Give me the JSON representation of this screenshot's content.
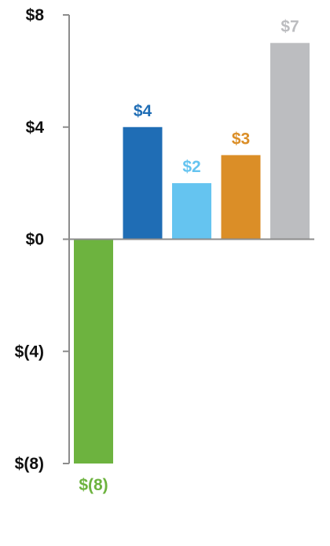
{
  "chart_data": {
    "type": "bar",
    "title": "",
    "xlabel": "",
    "ylabel": "",
    "ylim": [
      -8,
      8
    ],
    "y_ticks": [
      8,
      4,
      0,
      -4,
      -8
    ],
    "y_tick_labels": [
      "$8",
      "$4",
      "$0",
      "$(4)",
      "$(8)"
    ],
    "grid": false,
    "legend": "none",
    "values": [
      -8,
      4,
      2,
      3,
      7
    ],
    "data_labels": [
      "$(8)",
      "$4",
      "$2",
      "$3",
      "$7"
    ],
    "colors": [
      "#6DB33F",
      "#1F6DB5",
      "#65C4F0",
      "#DB8E27",
      "#BCBDC0"
    ],
    "label_colors": [
      "#6DB33F",
      "#1F6DB5",
      "#65C4F0",
      "#DB8E27",
      "#BCBDC0"
    ],
    "axis_color": "#8C8C8C"
  }
}
